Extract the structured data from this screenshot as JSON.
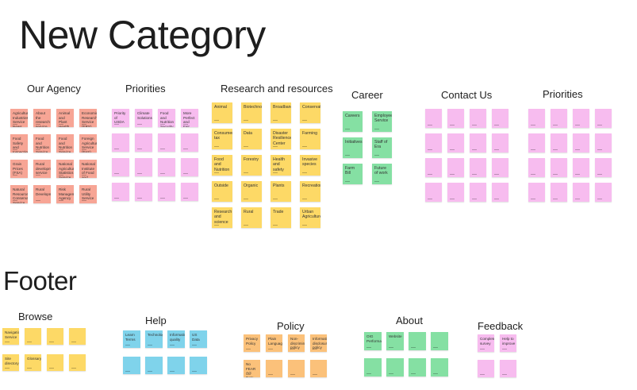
{
  "page_title": "New Category",
  "footer_title": "Footer",
  "colors": {
    "salmon": "#f7a595",
    "pink": "#f7bcef",
    "yellow": "#fdd966",
    "green": "#85e0a3",
    "blue": "#7fd3eb",
    "orange": "#fbc17a"
  },
  "groups": [
    {
      "id": "our-agency",
      "title": "Our Agency",
      "color": "salmon",
      "notes": [
        "Agricultural Industries Service News",
        "About the research service (ARS)",
        "Animal and Plant Health Inspection Service (APHIS)",
        "Economic Research Service (ERS)",
        "Food Safety and Inspection Service (FSIS)",
        "Food and Nutrition Service",
        "Food and Nutrition Service (USDA)",
        "Foreign Agricultural Service (FAS)",
        "Grain Prices (FSA)",
        "Rural development service",
        "National Agricultural Statistics Service (NASS)",
        "National Institute of Food and Agriculture (NIFA)",
        "Natural Resources Conservation Service (NRCS)",
        "Rural Development",
        "Risk Management Agency",
        "Rural Utility Service"
      ]
    },
    {
      "id": "priorities-1",
      "title": "Priorities",
      "color": "pink",
      "notes": [
        "Priority of USDA",
        "Climate Solutions",
        "Food and Nutrition Security",
        "More Perfect and Fair Market Opportunities",
        "",
        "",
        "",
        "",
        "",
        "",
        "",
        "",
        "",
        "",
        "",
        ""
      ]
    },
    {
      "id": "research",
      "title": "Research and resources",
      "color": "yellow",
      "notes": [
        "Animal",
        "Biotechnology",
        "Broadband",
        "Conservation",
        "Consumer tax",
        "Data",
        "Disaster Resilience Center",
        "Farming",
        "Food and Nutrition",
        "Forestry",
        "Health and safety",
        "Invasive species",
        "Outside",
        "Organic",
        "Plants",
        "Recreation",
        "Research and science",
        "Rural",
        "Trade",
        "Urban Agriculture"
      ]
    },
    {
      "id": "career",
      "title": "Career",
      "color": "green",
      "notes": [
        "Careers",
        "Employee Service",
        "Initiatives",
        "Staff of Era",
        "Farm Bill",
        "Future of work"
      ]
    },
    {
      "id": "contact",
      "title": "Contact Us",
      "color": "pink",
      "notes": [
        "",
        "",
        "",
        "",
        "",
        "",
        "",
        "",
        "",
        "",
        "",
        "",
        "",
        "",
        "",
        ""
      ]
    },
    {
      "id": "priorities-2",
      "title": "Priorities",
      "color": "pink",
      "notes": [
        "",
        "",
        "",
        "",
        "",
        "",
        "",
        "",
        "",
        "",
        "",
        "",
        "",
        "",
        "",
        ""
      ]
    },
    {
      "id": "browse",
      "title": "Browse",
      "color": "yellow",
      "notes": [
        "Navigation Service",
        "",
        "",
        "",
        "Site directory",
        "Glossary",
        "",
        ""
      ]
    },
    {
      "id": "help",
      "title": "Help",
      "color": "blue",
      "notes": [
        "Learn Terms",
        "Technology",
        "Information quality",
        "US Data",
        "",
        "",
        "",
        ""
      ]
    },
    {
      "id": "policy",
      "title": "Policy",
      "color": "orange",
      "notes": [
        "Privacy Policy",
        "Plain Language",
        "Non-discrimination policy",
        "Information disclosure policy",
        "No FEAR Act Data",
        "",
        "",
        ""
      ]
    },
    {
      "id": "about",
      "title": "About",
      "color": "green",
      "notes": [
        "OIG Performance",
        "Website",
        "",
        "",
        "",
        "",
        "",
        ""
      ]
    },
    {
      "id": "feedback",
      "title": "Feedback",
      "color": "pink",
      "notes": [
        "Complete survey",
        "Help to improve",
        "",
        ""
      ]
    }
  ]
}
